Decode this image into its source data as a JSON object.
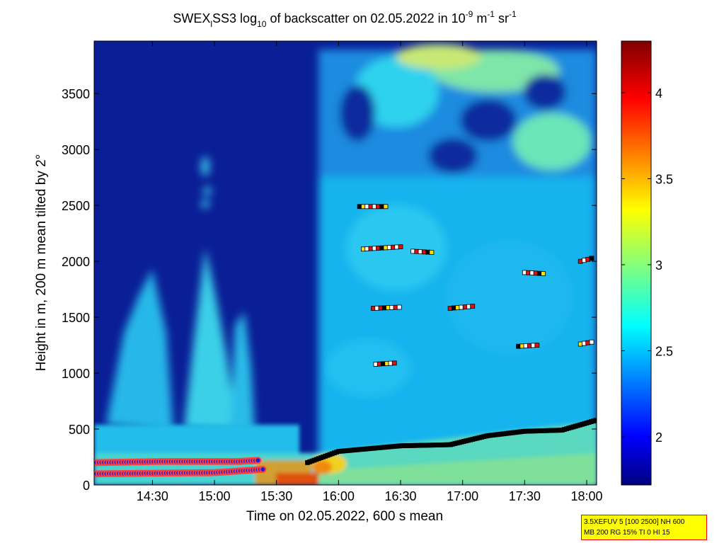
{
  "title": {
    "prefix": "SWEX",
    "sub1": "l",
    "mid": "SS3 log",
    "sub2": "10",
    "text": " of backscatter on 02.05.2022 in 10",
    "sup1": "-9",
    "unit": " m",
    "sup2": "-1",
    "unit2": " sr",
    "sup3": "-1"
  },
  "info_box": {
    "line1": "3.5XEFUV 5 [100 2500] NH 600",
    "line2": "MB 200 RG 15% TI 0 HI 15"
  },
  "colors": {
    "background_clear": "#0a1e96",
    "cloud_base_marker": "#000000",
    "aerosol_layer_outline": "#ff0000",
    "colormap": "jet"
  },
  "chart_data": {
    "type": "heatmap",
    "title": "SWEX_lSS3 log10 of backscatter on 02.05.2022 in 10^-9 m^-1 sr^-1",
    "xlabel": "Time on 02.05.2022, 600 s mean",
    "ylabel": "Height in m, 200 m mean tilted by 2°",
    "x_tick_labels": [
      "14:30",
      "15:00",
      "15:30",
      "16:00",
      "16:30",
      "17:00",
      "17:30",
      "18:00"
    ],
    "x_ticks_hours": [
      14.5,
      15.0,
      15.5,
      16.0,
      16.5,
      17.0,
      17.5,
      18.0
    ],
    "xlim_hours": [
      14.03,
      18.08
    ],
    "y_ticks": [
      0,
      500,
      1000,
      1500,
      2000,
      2500,
      3000,
      3500
    ],
    "ylim": [
      0,
      3970
    ],
    "colorbar": {
      "ticks": [
        2,
        2.5,
        3,
        3.5,
        4
      ],
      "tick_labels": [
        "2",
        "2.5",
        "3",
        "3.5",
        "4"
      ],
      "range": [
        1.72,
        4.3
      ],
      "colormap": "jet"
    },
    "boundary_layer_top": {
      "time": [
        15.75,
        16.0,
        16.5,
        16.9,
        17.2,
        17.5,
        17.8,
        18.08
      ],
      "height": [
        200,
        300,
        350,
        360,
        440,
        480,
        490,
        580
      ]
    },
    "cloud_bases": [
      {
        "time": [
          14.05,
          14.6,
          15.2,
          15.35
        ],
        "height": [
          200,
          210,
          210,
          220
        ]
      },
      {
        "time": [
          14.05,
          15.0,
          15.4
        ],
        "height": [
          100,
          110,
          140
        ]
      },
      {
        "time": [
          16.17,
          16.4
        ],
        "height": [
          2490,
          2490
        ]
      },
      {
        "time": [
          16.2,
          16.5
        ],
        "height": [
          2110,
          2130
        ]
      },
      {
        "time": [
          16.6,
          16.75
        ],
        "height": [
          2090,
          2080
        ]
      },
      {
        "time": [
          16.28,
          16.5
        ],
        "height": [
          1580,
          1590
        ]
      },
      {
        "time": [
          16.3,
          16.45
        ],
        "height": [
          1080,
          1090
        ]
      },
      {
        "time": [
          16.9,
          17.1
        ],
        "height": [
          1580,
          1600
        ]
      },
      {
        "time": [
          17.45,
          17.6
        ],
        "height": [
          1240,
          1250
        ]
      },
      {
        "time": [
          17.95,
          18.05
        ],
        "height": [
          1260,
          1280
        ]
      },
      {
        "time": [
          17.5,
          17.65
        ],
        "height": [
          1900,
          1890
        ]
      },
      {
        "time": [
          17.95,
          18.05
        ],
        "height": [
          2000,
          2030
        ]
      }
    ]
  }
}
